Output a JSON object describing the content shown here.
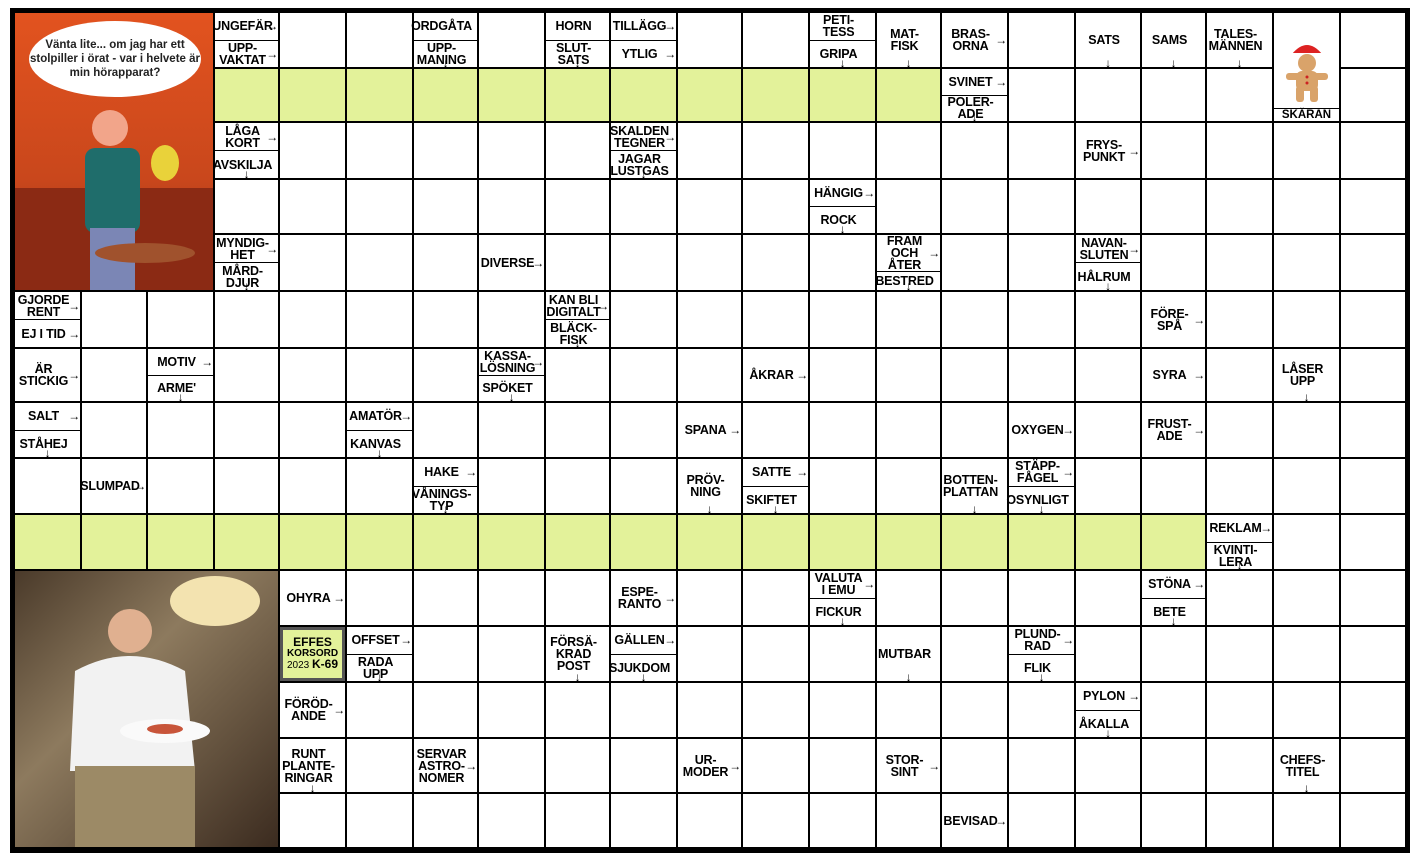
{
  "colors": {
    "grid": "#000000",
    "highlight": "#e3f29a",
    "cell": "#ffffff"
  },
  "cartoon": {
    "speech": "Vänta lite... om jag har ett stolpiller i örat - var i helvete är min hörapparat?"
  },
  "ginger": {
    "icon": "gingerbread-ornament-icon",
    "clue": "SKÄRAN",
    "arrow": "down"
  },
  "badge": {
    "line1": "EFFES",
    "line2": "KORSORD",
    "year": "2023",
    "code": "K-69"
  },
  "photo": {
    "icon": "man-eating-photo"
  },
  "grid": {
    "rows": [
      [
        "x",
        "x",
        "x",
        {
          "c": [
            {
              "t": "UNGEFÄR",
              "a": "right"
            },
            {
              "t": "UPP-\nVAKTAT",
              "a": "right"
            }
          ]
        },
        "w",
        "w",
        {
          "c": [
            {
              "t": "ORDGÅTA"
            },
            {
              "t": "UPP-\nMANING",
              "a": "down"
            }
          ]
        },
        "w",
        {
          "c": [
            {
              "t": "HORN"
            },
            {
              "t": "SLUT-\nSATS",
              "a": "down"
            }
          ]
        },
        {
          "c": [
            {
              "t": "TILLÄGG",
              "a": "right"
            },
            {
              "t": "YTLIG",
              "a": "right"
            }
          ]
        },
        "w",
        "w",
        {
          "c": [
            {
              "t": "PETI-\nTESS"
            },
            {
              "t": "GRIPA",
              "a": "down"
            }
          ]
        },
        {
          "c": [
            {
              "t": "MAT-\nFISK",
              "a": "down"
            }
          ]
        },
        {
          "c": [
            {
              "t": "BRAS-\nORNA",
              "a": "right"
            }
          ]
        },
        "w",
        {
          "c": [
            {
              "t": "SATS",
              "a": "down"
            }
          ]
        },
        {
          "c": [
            {
              "t": "SAMS",
              "a": "down"
            }
          ]
        },
        {
          "c": [
            {
              "t": "TALES-\nMÄNNEN",
              "a": "down"
            }
          ]
        },
        "x",
        "w"
      ],
      [
        "x",
        "x",
        "x",
        "g",
        "g",
        "g",
        "g",
        "g",
        "g",
        "g",
        "g",
        "g",
        "g",
        "g",
        {
          "c": [
            {
              "t": "SVINET",
              "a": "right"
            },
            {
              "t": "POLER-\nADE",
              "a": "down"
            }
          ]
        },
        "w",
        "w",
        "w",
        "w",
        "x",
        "w"
      ],
      [
        "x",
        "x",
        "x",
        {
          "c": [
            {
              "t": "LÅGA\nKORT",
              "a": "right"
            },
            {
              "t": "AVSKILJA",
              "a": "down"
            }
          ]
        },
        "w",
        "w",
        "w",
        "w",
        "w",
        {
          "c": [
            {
              "t": "SKALDEN\nTEGNER",
              "a": "right"
            },
            {
              "t": "JAGAR\nLUSTGAS",
              "a": "down"
            }
          ]
        },
        "w",
        "w",
        "w",
        "w",
        "w",
        "w",
        {
          "c": [
            {
              "t": "FRYS-\nPUNKT",
              "a": "right"
            }
          ]
        },
        "w",
        "w",
        "w",
        "w"
      ],
      [
        "x",
        "x",
        "x",
        "w",
        "w",
        "w",
        "w",
        "w",
        "w",
        "w",
        "w",
        "w",
        {
          "c": [
            {
              "t": "HÄNGIG",
              "a": "right"
            },
            {
              "t": "ROCK",
              "a": "down"
            }
          ]
        },
        "w",
        "w",
        "w",
        "w",
        "w",
        "w",
        "w",
        "w"
      ],
      [
        "x",
        "x",
        "x",
        {
          "c": [
            {
              "t": "MYNDIG-\nHET",
              "a": "right"
            },
            {
              "t": "MÅRD-\nDJUR",
              "a": "down"
            }
          ]
        },
        "w",
        "w",
        "w",
        {
          "c": [
            {
              "t": "DIVERSE",
              "a": "right"
            }
          ]
        },
        "w",
        "w",
        "w",
        "w",
        "w",
        {
          "c": [
            {
              "t": "FRAM\nOCH ÅTER",
              "a": "right"
            },
            {
              "t": "BESTRED",
              "a": "down"
            }
          ]
        },
        "w",
        "w",
        {
          "c": [
            {
              "t": "NAVAN-\nSLUTEN",
              "a": "right"
            },
            {
              "t": "HÅLRUM",
              "a": "down"
            }
          ]
        },
        "w",
        "w",
        "w",
        "w"
      ],
      [
        {
          "c": [
            {
              "t": "GJORDE\nRENT",
              "a": "right"
            },
            {
              "t": "EJ I TID",
              "a": "right"
            }
          ]
        },
        "w",
        "w",
        "w",
        "w",
        "w",
        "w",
        "w",
        {
          "c": [
            {
              "t": "KAN BLI\nDIGITALT",
              "a": "right"
            },
            {
              "t": "BLÄCK-\nFISK",
              "a": "down"
            }
          ]
        },
        "w",
        "w",
        "w",
        "w",
        "w",
        "w",
        "w",
        "w",
        {
          "c": [
            {
              "t": "FÖRE-\nSPÅ",
              "a": "right"
            }
          ]
        },
        "w",
        "w",
        "w"
      ],
      [
        {
          "c": [
            {
              "t": "ÄR\nSTICKIG",
              "a": "right"
            }
          ]
        },
        "w",
        {
          "c": [
            {
              "t": "MOTIV",
              "a": "right"
            },
            {
              "t": "ARME'",
              "a": "down"
            }
          ]
        },
        "w",
        "w",
        "w",
        "w",
        {
          "c": [
            {
              "t": "KASSA-\nLÖSNING",
              "a": "right"
            },
            {
              "t": "SPÖKET",
              "a": "down"
            }
          ]
        },
        "w",
        "w",
        "w",
        {
          "c": [
            {
              "t": "ÅKRAR",
              "a": "right"
            }
          ]
        },
        "w",
        "w",
        "w",
        "w",
        "w",
        {
          "c": [
            {
              "t": "SYRA",
              "a": "right"
            }
          ]
        },
        "w",
        {
          "c": [
            {
              "t": "LÅSER\nUPP",
              "a": "down"
            }
          ]
        },
        "w"
      ],
      [
        {
          "c": [
            {
              "t": "SALT",
              "a": "right"
            },
            {
              "t": "STÅHEJ",
              "a": "down"
            }
          ]
        },
        "w",
        "w",
        "w",
        "w",
        {
          "c": [
            {
              "t": "AMATÖR",
              "a": "right"
            },
            {
              "t": "KANVAS",
              "a": "down"
            }
          ]
        },
        "w",
        "w",
        "w",
        "w",
        {
          "c": [
            {
              "t": "SPANA",
              "a": "right"
            }
          ]
        },
        "w",
        "w",
        "w",
        "w",
        {
          "c": [
            {
              "t": "OXYGEN",
              "a": "right"
            }
          ]
        },
        "w",
        {
          "c": [
            {
              "t": "FRUST-\nADE",
              "a": "right"
            }
          ]
        },
        "w",
        "w",
        "w"
      ],
      [
        "w",
        {
          "c": [
            {
              "t": "SLUMPAD",
              "a": "right"
            }
          ]
        },
        "w",
        "w",
        "w",
        "w",
        {
          "c": [
            {
              "t": "HAKE",
              "a": "right"
            },
            {
              "t": "VÅNINGS-\nTYP",
              "a": "down"
            }
          ]
        },
        "w",
        "w",
        "w",
        {
          "c": [
            {
              "t": "PRÖV-\nNING",
              "a": "down"
            }
          ]
        },
        {
          "c": [
            {
              "t": "SATTE",
              "a": "right"
            },
            {
              "t": "SKIFTET",
              "a": "down"
            }
          ]
        },
        "w",
        "w",
        {
          "c": [
            {
              "t": "BOTTEN-\nPLATTAN",
              "a": "down"
            }
          ]
        },
        {
          "c": [
            {
              "t": "STÄPP-\nFÅGEL",
              "a": "right"
            },
            {
              "t": "OSYNLIGT",
              "a": "down"
            }
          ]
        },
        "w",
        "w",
        "w",
        "w",
        "w"
      ],
      [
        "g",
        "g",
        "g",
        "g",
        "g",
        "g",
        "g",
        "g",
        "g",
        "g",
        "g",
        "g",
        "g",
        "g",
        "g",
        "g",
        "g",
        "g",
        {
          "c": [
            {
              "t": "REKLAM",
              "a": "right"
            },
            {
              "t": "KVINTI-\nLERA",
              "a": "down"
            }
          ]
        },
        "w",
        "w"
      ],
      [
        "x",
        "x",
        "x",
        "x",
        {
          "c": [
            {
              "t": "OHYRA",
              "a": "right"
            }
          ]
        },
        "w",
        "w",
        "w",
        "w",
        {
          "c": [
            {
              "t": "ESPE-\nRANTO",
              "a": "right"
            }
          ]
        },
        "w",
        "w",
        {
          "c": [
            {
              "t": "VALUTA\nI EMU",
              "a": "right"
            },
            {
              "t": "FICKUR",
              "a": "down"
            }
          ]
        },
        "w",
        "w",
        "w",
        "w",
        {
          "c": [
            {
              "t": "STÖNA",
              "a": "right"
            },
            {
              "t": "BETE",
              "a": "down"
            }
          ]
        },
        "w",
        "w",
        "w"
      ],
      [
        "x",
        "x",
        "x",
        "x",
        "b",
        {
          "c": [
            {
              "t": "OFFSET",
              "a": "right"
            },
            {
              "t": "RADA\nUPP",
              "a": "down"
            }
          ]
        },
        "w",
        "w",
        {
          "c": [
            {
              "t": "FÖRSÄ-\nKRAD\nPOST",
              "a": "down"
            }
          ]
        },
        {
          "c": [
            {
              "t": "GÄLLEN",
              "a": "right"
            },
            {
              "t": "SJUKDOM",
              "a": "down"
            }
          ]
        },
        "w",
        "w",
        "w",
        {
          "c": [
            {
              "t": "MUTBAR",
              "a": "down"
            }
          ]
        },
        "w",
        {
          "c": [
            {
              "t": "PLUND-\nRAD",
              "a": "right"
            },
            {
              "t": "FLIK",
              "a": "down"
            }
          ]
        },
        "w",
        "w",
        "w",
        "w",
        "w"
      ],
      [
        "x",
        "x",
        "x",
        "x",
        {
          "c": [
            {
              "t": "FÖRÖD-\nANDE",
              "a": "right"
            }
          ]
        },
        "w",
        "w",
        "w",
        "w",
        "w",
        "w",
        "w",
        "w",
        "w",
        "w",
        "w",
        {
          "c": [
            {
              "t": "PYLON",
              "a": "right"
            },
            {
              "t": "ÅKALLA",
              "a": "down"
            }
          ]
        },
        "w",
        "w",
        "w",
        "w"
      ],
      [
        "x",
        "x",
        "x",
        "x",
        {
          "c": [
            {
              "t": "RUNT\nPLANTE-\nRINGAR",
              "a": "down"
            }
          ]
        },
        "w",
        {
          "c": [
            {
              "t": "SERVAR\nASTRO-\nNOMER",
              "a": "right"
            }
          ]
        },
        "w",
        "w",
        "w",
        {
          "c": [
            {
              "t": "UR-\nMODER",
              "a": "right"
            }
          ]
        },
        "w",
        "w",
        {
          "c": [
            {
              "t": "STOR-\nSINT",
              "a": "right"
            }
          ]
        },
        "w",
        "w",
        "w",
        "w",
        "w",
        {
          "c": [
            {
              "t": "CHEFS-\nTITEL",
              "a": "down"
            }
          ]
        },
        "w"
      ],
      [
        "x",
        "x",
        "x",
        "x",
        "w",
        "w",
        "w",
        "w",
        "w",
        "w",
        "w",
        "w",
        "w",
        "w",
        {
          "c": [
            {
              "t": "BEVISAD",
              "a": "right"
            }
          ]
        },
        "w",
        "w",
        "w",
        "w",
        "w",
        "w"
      ]
    ]
  }
}
